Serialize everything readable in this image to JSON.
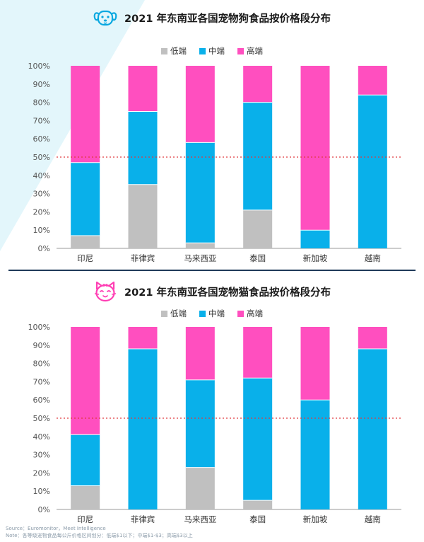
{
  "colors": {
    "low": "#c0c0c0",
    "mid": "#09b0ea",
    "high": "#ff4fbf",
    "ref_line": "#e0393e"
  },
  "charts": [
    {
      "icon": "dog-icon",
      "title": "2021 年东南亚各国宠物狗食品按价格段分布",
      "legend": [
        "低端",
        "中端",
        "高端"
      ]
    },
    {
      "icon": "cat-icon",
      "title": "2021 年东南亚各国宠物猫食品按价格段分布",
      "legend": [
        "低端",
        "中端",
        "高端"
      ]
    }
  ],
  "chart_data": [
    {
      "type": "bar",
      "stacked": true,
      "title": "2021 年东南亚各国宠物狗食品按价格段分布",
      "categories": [
        "印尼",
        "菲律宾",
        "马来西亚",
        "泰国",
        "新加坡",
        "越南"
      ],
      "series": [
        {
          "name": "低端",
          "values": [
            7,
            35,
            3,
            21,
            0,
            0
          ]
        },
        {
          "name": "中端",
          "values": [
            40,
            40,
            55,
            59,
            10,
            84
          ]
        },
        {
          "name": "高端",
          "values": [
            53,
            25,
            42,
            20,
            90,
            16
          ]
        }
      ],
      "y_ticks": [
        "0%",
        "10%",
        "20%",
        "30%",
        "40%",
        "50%",
        "60%",
        "70%",
        "80%",
        "90%",
        "100%"
      ],
      "ylim": [
        0,
        100
      ],
      "reference_line": 50,
      "legend_position": "top"
    },
    {
      "type": "bar",
      "stacked": true,
      "title": "2021 年东南亚各国宠物猫食品按价格段分布",
      "categories": [
        "印尼",
        "菲律宾",
        "马来西亚",
        "泰国",
        "新加坡",
        "越南"
      ],
      "series": [
        {
          "name": "低端",
          "values": [
            13,
            0,
            23,
            5,
            0,
            0
          ]
        },
        {
          "name": "中端",
          "values": [
            28,
            88,
            48,
            67,
            60,
            88
          ]
        },
        {
          "name": "高端",
          "values": [
            59,
            12,
            29,
            28,
            40,
            12
          ]
        }
      ],
      "y_ticks": [
        "0%",
        "10%",
        "20%",
        "30%",
        "40%",
        "50%",
        "60%",
        "70%",
        "80%",
        "90%",
        "100%"
      ],
      "ylim": [
        0,
        100
      ],
      "reference_line": 50,
      "legend_position": "top"
    }
  ],
  "footer": {
    "source": "Source：Euromonitor，Meet Intelligence",
    "note": "Note：各等级宠物食品每公斤价格区间划分：低端$1以下；中端$1-$3；高端$3以上"
  }
}
